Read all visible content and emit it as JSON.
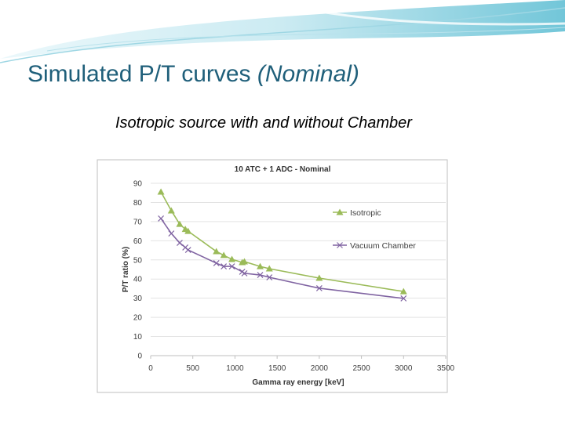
{
  "slide": {
    "title": "Simulated P/T curves",
    "title_italic": "(Nominal)",
    "subtitle": "Isotropic source with and without Chamber"
  },
  "chart_data": {
    "type": "line",
    "title": "10 ATC + 1 ADC - Nominal",
    "x_label": "Gamma ray energy [keV]",
    "y_label": "P/T ratio  (%)",
    "xlim": [
      0,
      3500
    ],
    "xticks": [
      0,
      500,
      1000,
      1500,
      2000,
      2500,
      3000,
      3500
    ],
    "ylim": [
      0,
      90
    ],
    "yticks": [
      0,
      10,
      20,
      30,
      40,
      50,
      60,
      70,
      80,
      90
    ],
    "grid": true,
    "legend": "right",
    "series": [
      {
        "name": "Isotropic",
        "color": "#9bbb59",
        "marker": "triangle",
        "x": [
          122,
          245,
          344,
          411,
          444,
          779,
          867,
          964,
          1086,
          1112,
          1299,
          1408,
          2000,
          3000
        ],
        "values": [
          85.5,
          75.7,
          68.7,
          66,
          65,
          54.4,
          52.4,
          50.3,
          48.7,
          49.1,
          46.6,
          45.4,
          40.5,
          33.5
        ]
      },
      {
        "name": "Vacuum Chamber",
        "color": "#8064a2",
        "marker": "x",
        "x": [
          122,
          245,
          344,
          411,
          444,
          779,
          867,
          964,
          1086,
          1112,
          1299,
          1408,
          2000,
          3000
        ],
        "values": [
          71.6,
          63.8,
          58.9,
          56.5,
          55.2,
          48.3,
          46.6,
          46.6,
          43.8,
          43,
          42.1,
          40.9,
          35.2,
          29.9
        ]
      }
    ]
  }
}
